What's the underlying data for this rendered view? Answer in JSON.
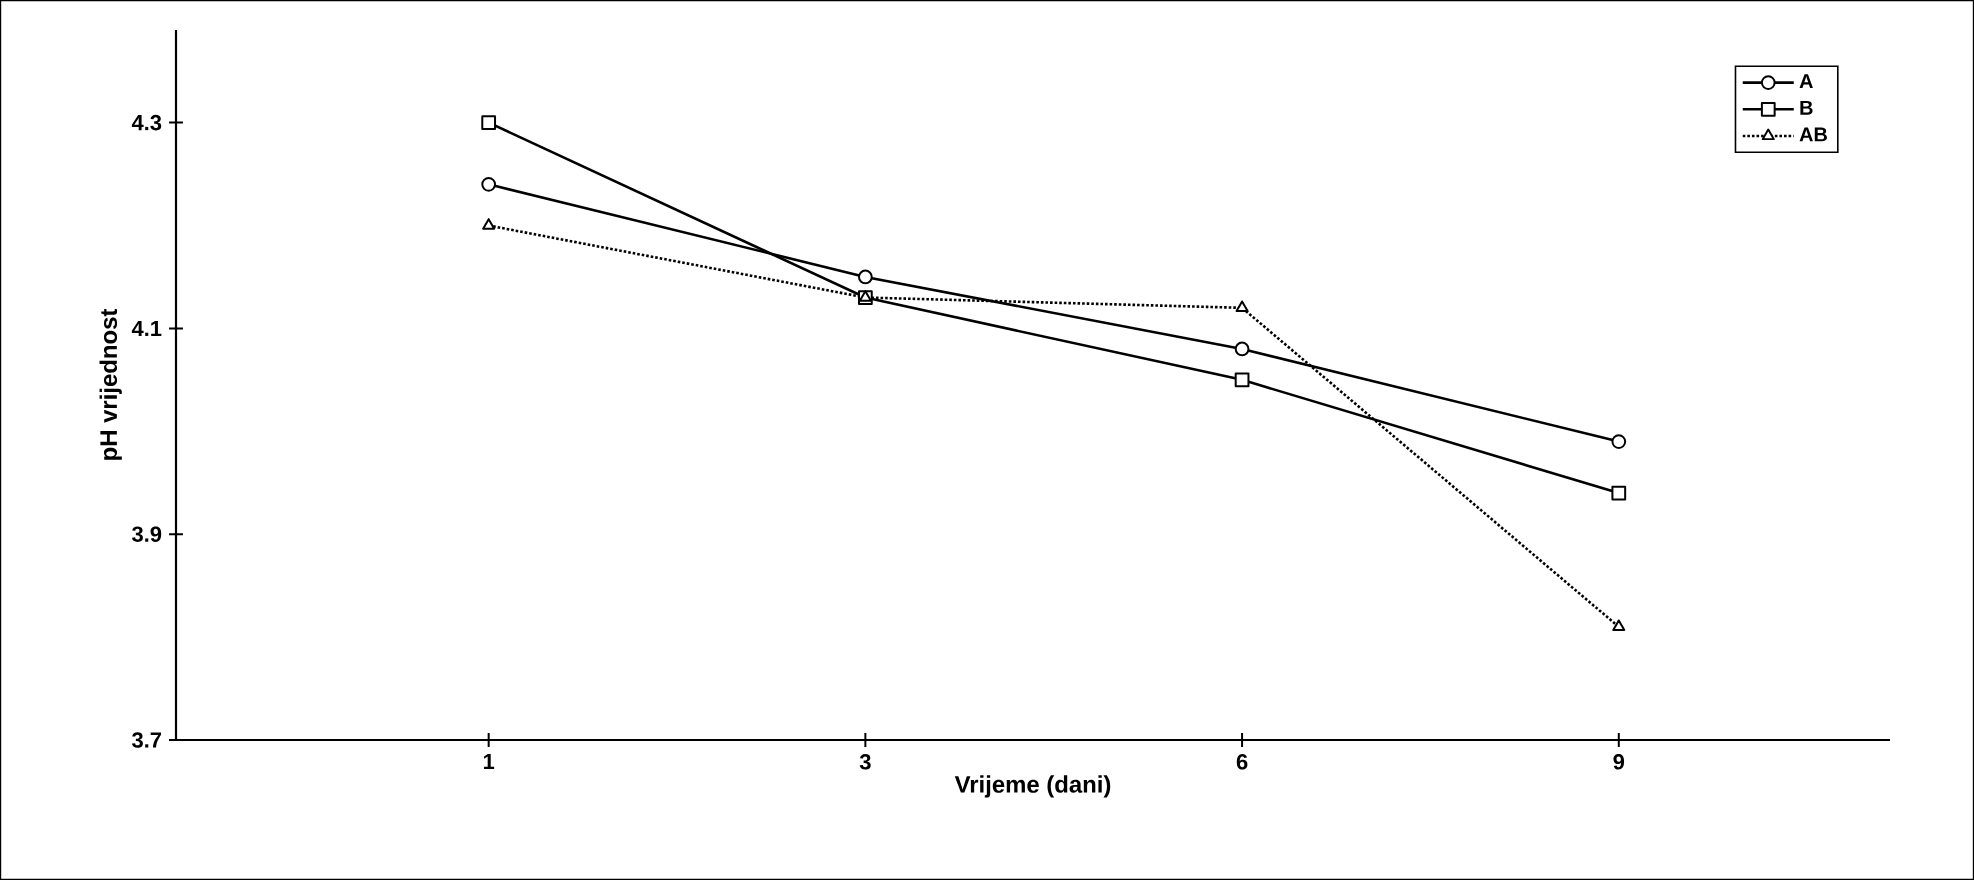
{
  "chart_data": {
    "type": "line",
    "xlabel": "Vrijeme (dani)",
    "ylabel": "pH vrijednost",
    "categories": [
      "1",
      "3",
      "6",
      "9"
    ],
    "ylim": [
      3.7,
      4.39
    ],
    "yticks": [
      3.7,
      3.9,
      4.1,
      4.3
    ],
    "grid": false,
    "legend": "top right",
    "series": [
      {
        "name": "A",
        "color": "#000000",
        "marker": "circle",
        "line_style": "solid",
        "values": [
          4.24,
          4.15,
          4.08,
          3.99
        ]
      },
      {
        "name": "B",
        "color": "#000000",
        "marker": "square",
        "line_style": "solid",
        "values": [
          4.3,
          4.13,
          4.05,
          3.94
        ]
      },
      {
        "name": "AB",
        "color": "#000000",
        "marker": "triangle",
        "line_style": "dotted",
        "values": [
          4.2,
          4.13,
          4.12,
          3.81
        ]
      }
    ]
  }
}
